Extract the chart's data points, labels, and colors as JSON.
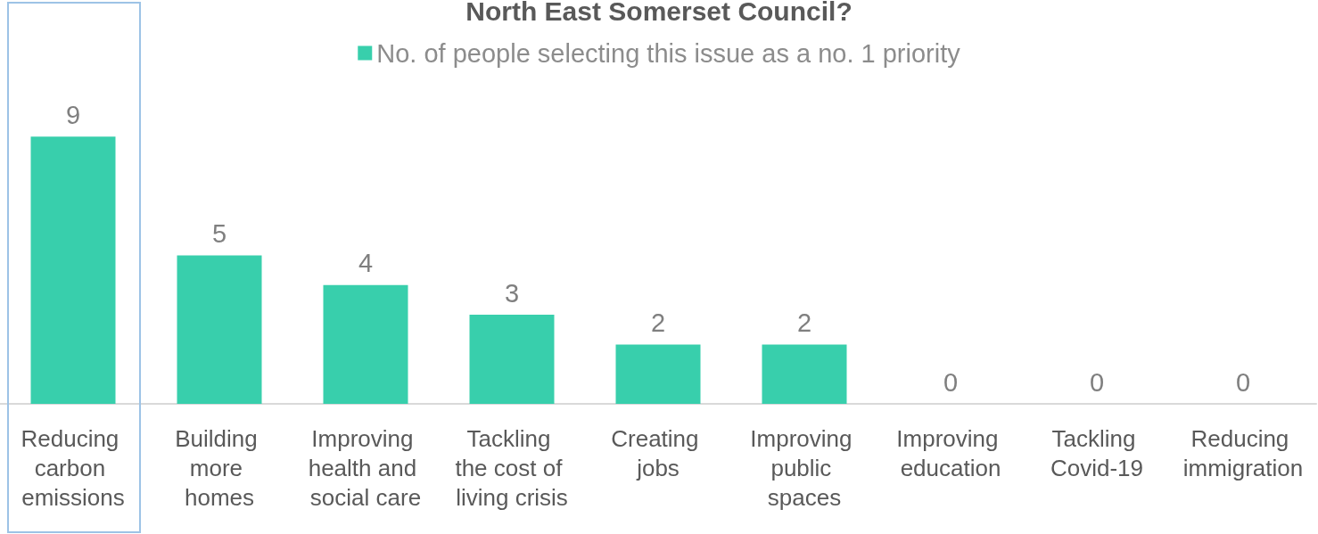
{
  "chart_data": {
    "type": "bar",
    "title": "North East Somerset Council?",
    "categories": [
      "Reducing carbon emissions",
      "Building more homes",
      "Improving health and social care",
      "Tackling the cost of living crisis",
      "Creating jobs",
      "Improving public spaces",
      "Improving education",
      "Tackling Covid-19",
      "Reducing immigration"
    ],
    "series": [
      {
        "name": "No. of people selecting this issue as a no. 1 priority",
        "color": "#38cfac",
        "values": [
          9,
          5,
          4,
          3,
          2,
          2,
          0,
          0,
          0
        ]
      }
    ],
    "data_labels": true,
    "legend": "top"
  }
}
